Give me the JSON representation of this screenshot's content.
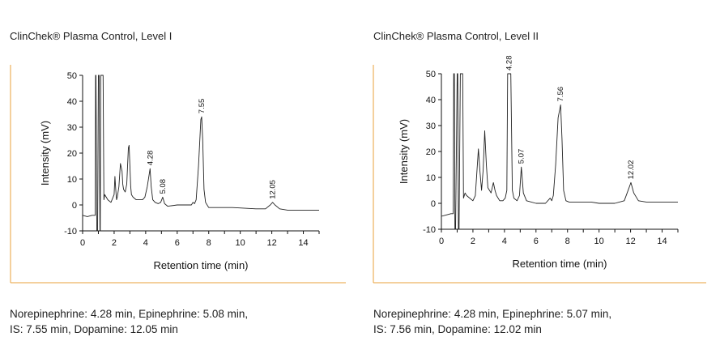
{
  "colors": {
    "frame": "#e9a13b",
    "trace": "#222222",
    "axis": "#111111"
  },
  "panels": [
    {
      "title": "ClinChek® Plasma Control, Level I",
      "caption_line1": "Norepinephrine: 4.28 min, Epinephrine: 5.08 min,",
      "caption_line2": "IS: 7.55 min, Dopamine: 12.05 min"
    },
    {
      "title": "ClinChek® Plasma Control, Level II",
      "caption_line1": "Norepinephrine: 4.28 min, Epinephrine: 5.07 min,",
      "caption_line2": "IS: 7.56 min, Dopamine: 12.02 min"
    }
  ],
  "chart_data": [
    {
      "type": "line",
      "title": "",
      "xlabel": "Retention time (min)",
      "ylabel": "Intensity (mV)",
      "xlim": [
        0,
        15
      ],
      "ylim": [
        -10,
        50
      ],
      "xticks": [
        0,
        2,
        4,
        6,
        8,
        10,
        12,
        14
      ],
      "yticks": [
        -10,
        0,
        10,
        20,
        30,
        40,
        50
      ],
      "peak_labels": [
        {
          "x": 4.28,
          "y": 14,
          "label": "4.28"
        },
        {
          "x": 5.08,
          "y": 3,
          "label": "5.08"
        },
        {
          "x": 7.55,
          "y": 34,
          "label": "7.55"
        },
        {
          "x": 12.05,
          "y": 1,
          "label": "12.05"
        }
      ],
      "series": [
        {
          "x": [
            0,
            0.3,
            0.6,
            0.8,
            0.82,
            0.85,
            0.9,
            0.95,
            1.0,
            1.05,
            1.1,
            1.12,
            1.15,
            1.2,
            1.25,
            1.3,
            1.35,
            1.4,
            1.5,
            1.6,
            1.8,
            2.0,
            2.05,
            2.1,
            2.15,
            2.2,
            2.3,
            2.4,
            2.5,
            2.55,
            2.6,
            2.7,
            2.8,
            2.9,
            2.95,
            3.0,
            3.05,
            3.1,
            3.2,
            3.4,
            3.6,
            3.8,
            3.95,
            4.1,
            4.2,
            4.28,
            4.35,
            4.45,
            4.6,
            4.8,
            4.95,
            5.08,
            5.2,
            5.4,
            6.0,
            6.6,
            6.9,
            7.0,
            7.1,
            7.2,
            7.35,
            7.5,
            7.55,
            7.62,
            7.7,
            7.8,
            8.0,
            8.5,
            9.5,
            11.0,
            11.6,
            11.9,
            12.05,
            12.2,
            12.5,
            13.0,
            14.0,
            15.0
          ],
          "y": [
            -4,
            -4.5,
            -4,
            -4,
            50,
            50,
            -10,
            -10,
            50,
            50,
            -10,
            -10,
            50,
            50,
            50,
            50,
            2,
            4,
            3,
            2,
            1,
            4,
            11,
            6,
            2,
            3,
            7,
            16,
            13,
            8,
            6,
            5,
            8,
            22,
            23,
            15,
            7,
            4,
            3,
            2,
            2,
            2,
            3,
            7,
            11,
            14,
            7,
            2,
            1,
            0.5,
            1,
            3,
            0.5,
            -0.5,
            0,
            0,
            0,
            1,
            0.5,
            2,
            15,
            33,
            34,
            25,
            6,
            1,
            -1,
            -1,
            -1,
            -1.5,
            -1.5,
            0,
            1,
            0,
            -1.5,
            -2,
            -2,
            -2
          ]
        }
      ]
    },
    {
      "type": "line",
      "title": "",
      "xlabel": "Retention time (min)",
      "ylabel": "Intensity (mV)",
      "xlim": [
        0,
        15
      ],
      "ylim": [
        -10,
        50
      ],
      "xticks": [
        0,
        2,
        4,
        6,
        8,
        10,
        12,
        14
      ],
      "yticks": [
        -10,
        0,
        10,
        20,
        30,
        40,
        50
      ],
      "peak_labels": [
        {
          "x": 4.28,
          "y": 50,
          "label": "4.28"
        },
        {
          "x": 5.07,
          "y": 14,
          "label": "5.07"
        },
        {
          "x": 7.56,
          "y": 38,
          "label": "7.56"
        },
        {
          "x": 12.02,
          "y": 8,
          "label": "12.02"
        }
      ],
      "series": [
        {
          "x": [
            0,
            0.3,
            0.6,
            0.75,
            0.78,
            0.82,
            0.86,
            0.9,
            1.0,
            1.04,
            1.08,
            1.12,
            1.2,
            1.3,
            1.35,
            1.4,
            1.5,
            1.6,
            1.8,
            2.0,
            2.15,
            2.25,
            2.35,
            2.45,
            2.55,
            2.65,
            2.75,
            2.85,
            2.95,
            3.05,
            3.15,
            3.3,
            3.4,
            3.5,
            3.7,
            3.9,
            4.05,
            4.15,
            4.2,
            4.4,
            4.5,
            4.6,
            4.8,
            4.95,
            5.07,
            5.2,
            5.4,
            6.0,
            6.6,
            6.9,
            7.0,
            7.1,
            7.25,
            7.4,
            7.56,
            7.65,
            7.75,
            7.9,
            8.1,
            8.8,
            9.5,
            10.0,
            11.0,
            11.6,
            11.9,
            12.02,
            12.2,
            12.5,
            13.0,
            14.0,
            15.0
          ],
          "y": [
            -5,
            -4.5,
            -4,
            -4,
            50,
            50,
            -10,
            -10,
            50,
            50,
            -10,
            -10,
            50,
            50,
            50,
            2,
            4,
            3,
            2,
            1,
            3,
            12,
            21,
            12,
            5,
            13,
            28,
            15,
            6,
            5,
            4,
            8,
            5,
            3,
            1,
            1,
            2,
            5,
            50,
            50,
            5,
            2,
            1,
            3,
            14,
            4,
            1,
            0,
            0,
            2,
            1,
            3,
            15,
            33,
            38,
            25,
            5,
            1,
            0.5,
            0.5,
            0.5,
            0,
            0,
            1,
            6,
            8,
            4,
            1,
            0.5,
            0.5,
            0.5
          ]
        }
      ]
    }
  ]
}
